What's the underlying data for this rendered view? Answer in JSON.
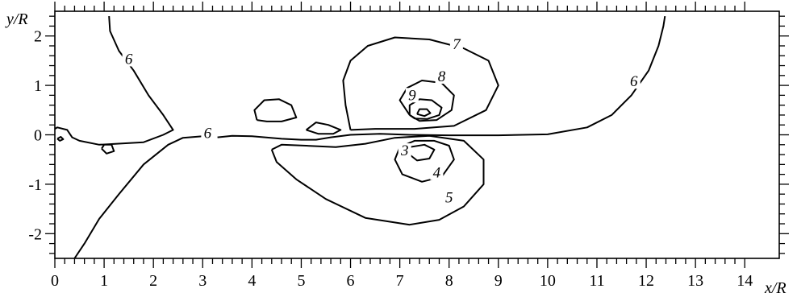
{
  "chart_data": {
    "type": "contour",
    "xlabel": "x/R",
    "ylabel": "y/R",
    "xlim": [
      0,
      14.7
    ],
    "ylim": [
      -2.5,
      2.5
    ],
    "x_ticks": [
      "0",
      "1",
      "2",
      "3",
      "4",
      "5",
      "6",
      "7",
      "8",
      "9",
      "10",
      "11",
      "12",
      "13",
      "14"
    ],
    "y_ticks": [
      "-2",
      "-1",
      "0",
      "1",
      "2"
    ],
    "contours": [
      {
        "level": "6",
        "label_x": 1.5,
        "label_y": 1.45,
        "points": [
          [
            1.1,
            2.4
          ],
          [
            1.12,
            2.1
          ],
          [
            1.3,
            1.7
          ],
          [
            1.6,
            1.3
          ],
          [
            1.9,
            0.8
          ],
          [
            2.2,
            0.4
          ],
          [
            2.4,
            0.1
          ],
          [
            2.2,
            0.0
          ],
          [
            1.8,
            -0.15
          ],
          [
            0.9,
            -0.2
          ],
          [
            0.5,
            -0.12
          ],
          [
            0.35,
            -0.05
          ],
          [
            0.25,
            0.1
          ],
          [
            0.05,
            0.15
          ],
          [
            0.0,
            0.12
          ]
        ]
      },
      {
        "level": "6",
        "label_x": 3.1,
        "label_y": -0.05,
        "points": [
          [
            0.4,
            -2.5
          ],
          [
            0.6,
            -2.2
          ],
          [
            0.9,
            -1.7
          ],
          [
            1.3,
            -1.2
          ],
          [
            1.8,
            -0.6
          ],
          [
            2.3,
            -0.2
          ],
          [
            2.6,
            -0.06
          ],
          [
            3.0,
            -0.03
          ]
        ]
      },
      {
        "level": "6",
        "label_x": 11.75,
        "label_y": 1.0,
        "points": [
          [
            3.3,
            -0.05
          ],
          [
            3.6,
            -0.02
          ],
          [
            4.0,
            -0.03
          ],
          [
            4.6,
            -0.08
          ],
          [
            5.0,
            -0.1
          ],
          [
            5.3,
            -0.1
          ],
          [
            5.6,
            -0.05
          ],
          [
            6.0,
            0.0
          ],
          [
            6.6,
            0.02
          ],
          [
            7.2,
            0.0
          ],
          [
            8.0,
            -0.01
          ],
          [
            9.0,
            -0.01
          ],
          [
            10.0,
            0.01
          ],
          [
            10.8,
            0.15
          ],
          [
            11.3,
            0.4
          ],
          [
            11.7,
            0.8
          ],
          [
            12.05,
            1.3
          ],
          [
            12.25,
            1.8
          ],
          [
            12.35,
            2.2
          ],
          [
            12.38,
            2.4
          ]
        ]
      },
      {
        "level": "7",
        "label_x": 8.15,
        "label_y": 1.75,
        "points": [
          [
            6.0,
            0.1
          ],
          [
            5.9,
            0.6
          ],
          [
            5.85,
            1.1
          ],
          [
            6.0,
            1.5
          ],
          [
            6.35,
            1.8
          ],
          [
            6.9,
            1.97
          ],
          [
            7.6,
            1.93
          ],
          [
            8.3,
            1.75
          ],
          [
            8.8,
            1.5
          ],
          [
            9.0,
            1.0
          ],
          [
            8.75,
            0.5
          ],
          [
            8.1,
            0.18
          ],
          [
            7.3,
            0.12
          ],
          [
            6.5,
            0.12
          ],
          [
            6.0,
            0.1
          ]
        ]
      },
      {
        "level": "8",
        "label_x": 7.85,
        "label_y": 1.1,
        "points": [
          [
            7.2,
            0.4
          ],
          [
            7.0,
            0.7
          ],
          [
            7.15,
            0.95
          ],
          [
            7.45,
            1.1
          ],
          [
            7.85,
            1.05
          ],
          [
            8.1,
            0.8
          ],
          [
            8.05,
            0.5
          ],
          [
            7.75,
            0.3
          ],
          [
            7.4,
            0.28
          ],
          [
            7.2,
            0.4
          ]
        ]
      },
      {
        "level": "9",
        "label_x": 7.25,
        "label_y": 0.72,
        "points": [
          [
            7.2,
            0.4
          ],
          [
            7.2,
            0.6
          ],
          [
            7.4,
            0.72
          ],
          [
            7.65,
            0.7
          ],
          [
            7.85,
            0.55
          ],
          [
            7.8,
            0.4
          ],
          [
            7.55,
            0.32
          ],
          [
            7.3,
            0.33
          ],
          [
            7.2,
            0.4
          ]
        ]
      },
      {
        "level": "",
        "label_x": null,
        "label_y": null,
        "points": [
          [
            7.35,
            0.42
          ],
          [
            7.4,
            0.52
          ],
          [
            7.55,
            0.52
          ],
          [
            7.62,
            0.44
          ],
          [
            7.5,
            0.38
          ],
          [
            7.35,
            0.42
          ]
        ]
      },
      {
        "level": "",
        "label_x": null,
        "label_y": null,
        "points": [
          [
            4.1,
            0.3
          ],
          [
            4.05,
            0.5
          ],
          [
            4.25,
            0.7
          ],
          [
            4.55,
            0.72
          ],
          [
            4.8,
            0.6
          ],
          [
            4.9,
            0.35
          ],
          [
            4.6,
            0.27
          ],
          [
            4.3,
            0.27
          ],
          [
            4.1,
            0.3
          ]
        ]
      },
      {
        "level": "",
        "label_x": null,
        "label_y": null,
        "points": [
          [
            5.1,
            0.1
          ],
          [
            5.3,
            0.25
          ],
          [
            5.55,
            0.2
          ],
          [
            5.8,
            0.1
          ],
          [
            5.65,
            0.02
          ],
          [
            5.35,
            0.02
          ],
          [
            5.1,
            0.1
          ]
        ]
      },
      {
        "level": "5",
        "label_x": 8.0,
        "label_y": -1.35,
        "points": [
          [
            4.4,
            -0.3
          ],
          [
            4.5,
            -0.55
          ],
          [
            4.9,
            -0.9
          ],
          [
            5.5,
            -1.3
          ],
          [
            6.3,
            -1.68
          ],
          [
            7.2,
            -1.82
          ],
          [
            7.8,
            -1.72
          ],
          [
            8.3,
            -1.45
          ],
          [
            8.7,
            -1.0
          ],
          [
            8.7,
            -0.5
          ],
          [
            8.3,
            -0.12
          ],
          [
            7.6,
            -0.02
          ],
          [
            6.9,
            -0.06
          ],
          [
            6.3,
            -0.18
          ],
          [
            5.7,
            -0.25
          ],
          [
            5.1,
            -0.22
          ],
          [
            4.6,
            -0.2
          ],
          [
            4.4,
            -0.3
          ]
        ]
      },
      {
        "level": "4",
        "label_x": 7.75,
        "label_y": -0.85,
        "points": [
          [
            7.0,
            -0.25
          ],
          [
            6.9,
            -0.5
          ],
          [
            7.05,
            -0.8
          ],
          [
            7.45,
            -0.95
          ],
          [
            7.85,
            -0.85
          ],
          [
            8.1,
            -0.5
          ],
          [
            8.0,
            -0.22
          ],
          [
            7.7,
            -0.12
          ],
          [
            7.3,
            -0.12
          ],
          [
            7.0,
            -0.25
          ]
        ]
      },
      {
        "level": "3",
        "label_x": 7.1,
        "label_y": -0.4,
        "points": [
          [
            7.2,
            -0.25
          ],
          [
            7.2,
            -0.4
          ],
          [
            7.35,
            -0.52
          ],
          [
            7.6,
            -0.48
          ],
          [
            7.7,
            -0.3
          ],
          [
            7.5,
            -0.2
          ],
          [
            7.2,
            -0.25
          ]
        ]
      },
      {
        "level": "",
        "label_x": null,
        "label_y": null,
        "points": [
          [
            0.95,
            -0.28
          ],
          [
            1.05,
            -0.38
          ],
          [
            1.2,
            -0.33
          ],
          [
            1.15,
            -0.2
          ],
          [
            1.0,
            -0.2
          ],
          [
            0.95,
            -0.28
          ]
        ]
      },
      {
        "level": "",
        "label_x": null,
        "label_y": null,
        "points": [
          [
            0.05,
            -0.08
          ],
          [
            0.1,
            -0.12
          ],
          [
            0.17,
            -0.09
          ],
          [
            0.12,
            -0.04
          ],
          [
            0.05,
            -0.08
          ]
        ]
      }
    ]
  }
}
